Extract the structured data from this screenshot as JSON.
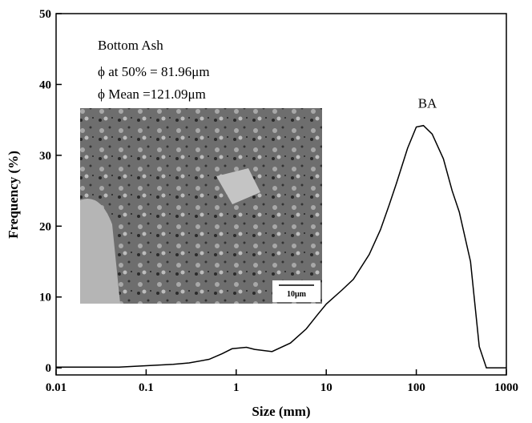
{
  "chart_data": {
    "type": "line",
    "x_scale": "log",
    "x_label": "Size (mm)",
    "y_label": "Frequency (%)",
    "annotations": [
      "Bottom Ash",
      "ϕ at 50% = 81.96μm",
      "ϕ Mean   =121.09μm"
    ],
    "inset_scale_label": "10μm",
    "xlim": [
      0.01,
      1000
    ],
    "ylim": [
      -1,
      50
    ],
    "xticks": [
      0.01,
      0.1,
      1,
      10,
      100,
      1000
    ],
    "yticks": [
      0,
      10,
      20,
      30,
      40,
      50
    ],
    "series": [
      {
        "name": "BA",
        "color": "#000000",
        "x": [
          0.01,
          0.05,
          0.1,
          0.2,
          0.3,
          0.5,
          0.7,
          0.9,
          1.3,
          1.6,
          2.5,
          4,
          6,
          8,
          10,
          15,
          20,
          30,
          40,
          50,
          60,
          80,
          100,
          120,
          150,
          200,
          250,
          300,
          400,
          500,
          600,
          1000
        ],
        "values": [
          0.1,
          0.1,
          0.3,
          0.5,
          0.7,
          1.2,
          2.0,
          2.7,
          2.9,
          2.6,
          2.3,
          3.5,
          5.5,
          7.5,
          9,
          11,
          12.5,
          16,
          19.5,
          23,
          26,
          31,
          34,
          34.2,
          33,
          29.5,
          25,
          22,
          15,
          3,
          0,
          0
        ]
      }
    ]
  }
}
